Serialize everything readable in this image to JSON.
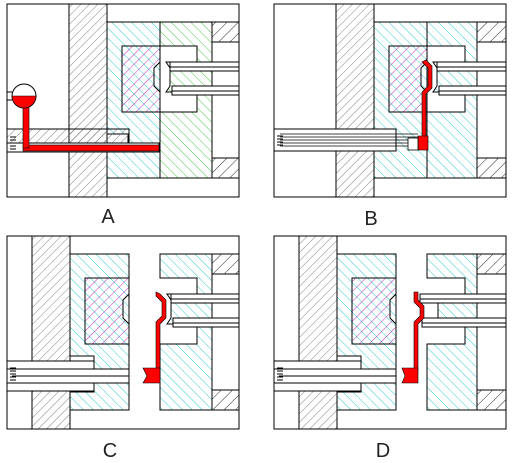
{
  "panels": [
    {
      "id": "A",
      "label": "A"
    },
    {
      "id": "B",
      "label": "B"
    },
    {
      "id": "C",
      "label": "C"
    },
    {
      "id": "D",
      "label": "D"
    }
  ],
  "colors": {
    "outline": "#000000",
    "steel_hatch": "#555555",
    "moving_half_hatch": "#00c8c8",
    "fixed_half_hatch": "#00bb00",
    "core_hatch": "#bb00bb",
    "melt": "#ff0000"
  }
}
